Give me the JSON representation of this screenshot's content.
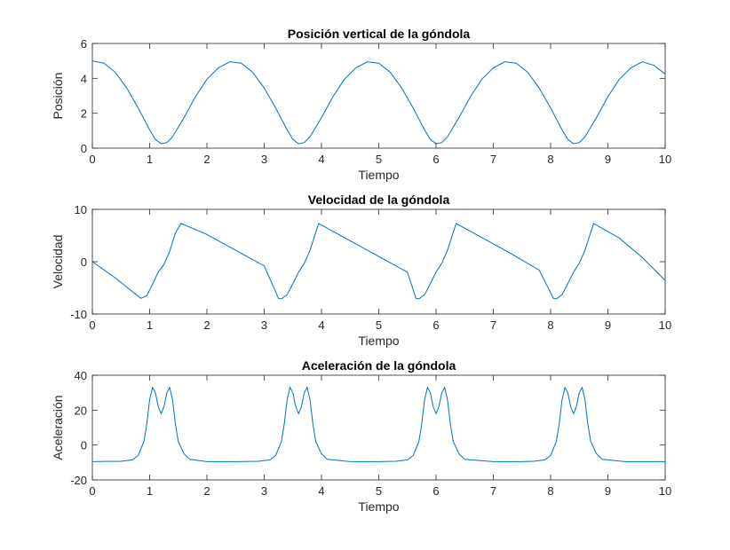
{
  "chart_data": [
    {
      "type": "line",
      "title": "Posición vertical de la góndola",
      "xlabel": "Tiempo",
      "ylabel": "Posición",
      "xlim": [
        0,
        10
      ],
      "ylim": [
        0,
        6
      ],
      "xticks": [
        0,
        1,
        2,
        3,
        4,
        5,
        6,
        7,
        8,
        9,
        10
      ],
      "yticks": [
        0,
        2,
        4,
        6
      ],
      "grid": false,
      "series": [
        {
          "color": "#0072BD",
          "x": [
            0,
            0.2,
            0.4,
            0.6,
            0.8,
            1.0,
            1.1,
            1.2,
            1.3,
            1.4,
            1.6,
            1.8,
            2.0,
            2.2,
            2.4,
            2.6,
            2.8,
            3.0,
            3.2,
            3.4,
            3.5,
            3.6,
            3.7,
            3.8,
            4.0,
            4.2,
            4.4,
            4.6,
            4.8,
            5.0,
            5.2,
            5.4,
            5.6,
            5.8,
            5.9,
            6.0,
            6.1,
            6.2,
            6.4,
            6.6,
            6.8,
            7.0,
            7.2,
            7.4,
            7.6,
            7.8,
            8.0,
            8.2,
            8.3,
            8.4,
            8.5,
            8.6,
            8.8,
            9.0,
            9.2,
            9.4,
            9.6,
            9.8,
            10.0
          ],
          "y": [
            5.0,
            4.87,
            4.35,
            3.45,
            2.3,
            1.05,
            0.5,
            0.25,
            0.32,
            0.65,
            1.75,
            2.95,
            3.95,
            4.6,
            4.95,
            4.87,
            4.35,
            3.45,
            2.3,
            1.05,
            0.5,
            0.25,
            0.32,
            0.65,
            1.75,
            2.95,
            3.95,
            4.6,
            4.95,
            4.87,
            4.35,
            3.45,
            2.3,
            1.05,
            0.5,
            0.25,
            0.32,
            0.65,
            1.75,
            2.95,
            3.95,
            4.6,
            4.95,
            4.87,
            4.35,
            3.45,
            2.3,
            1.05,
            0.5,
            0.25,
            0.32,
            0.65,
            1.75,
            2.95,
            3.95,
            4.6,
            4.95,
            4.75,
            4.25
          ]
        }
      ]
    },
    {
      "type": "line",
      "title": "Velocidad de la góndola",
      "xlabel": "Tiempo",
      "ylabel": "Velocidad",
      "xlim": [
        0,
        10
      ],
      "ylim": [
        -10,
        10
      ],
      "xticks": [
        0,
        1,
        2,
        3,
        4,
        5,
        6,
        7,
        8,
        9,
        10
      ],
      "yticks": [
        -10,
        0,
        10
      ],
      "grid": false,
      "series": [
        {
          "color": "#0072BD",
          "x": [
            0,
            0.4,
            0.8,
            0.85,
            0.95,
            1.05,
            1.15,
            1.25,
            1.35,
            1.45,
            1.55,
            2.0,
            2.5,
            3.0,
            3.25,
            3.3,
            3.4,
            3.5,
            3.6,
            3.7,
            3.8,
            3.9,
            3.95,
            4.5,
            5.0,
            5.5,
            5.65,
            5.7,
            5.8,
            5.9,
            6.0,
            6.1,
            6.2,
            6.3,
            6.35,
            6.8,
            7.3,
            7.8,
            8.05,
            8.1,
            8.2,
            8.3,
            8.4,
            8.5,
            8.6,
            8.7,
            8.75,
            9.2,
            9.6,
            10.0
          ],
          "y": [
            0,
            -3.1,
            -6.6,
            -7.0,
            -6.5,
            -4.3,
            -2.0,
            -0.5,
            2.0,
            5.5,
            7.3,
            5.2,
            2.2,
            -0.8,
            -7.0,
            -7.1,
            -6.3,
            -4.2,
            -2.0,
            -0.3,
            2.2,
            5.6,
            7.3,
            4.0,
            1.0,
            -2.0,
            -7.0,
            -7.1,
            -6.3,
            -4.2,
            -2.0,
            -0.3,
            2.2,
            5.6,
            7.3,
            4.6,
            1.6,
            -1.6,
            -7.0,
            -7.1,
            -6.3,
            -4.2,
            -2.0,
            -0.3,
            2.2,
            5.6,
            7.3,
            4.5,
            0.8,
            -3.6
          ]
        }
      ]
    },
    {
      "type": "line",
      "title": "Aceleración de la góndola",
      "xlabel": "Tiempo",
      "ylabel": "Aceleración",
      "xlim": [
        0,
        10
      ],
      "ylim": [
        -20,
        40
      ],
      "xticks": [
        0,
        1,
        2,
        3,
        4,
        5,
        6,
        7,
        8,
        9,
        10
      ],
      "yticks": [
        -20,
        0,
        20,
        40
      ],
      "grid": false,
      "series": [
        {
          "color": "#0072BD",
          "x": [
            0,
            0.5,
            0.7,
            0.8,
            0.9,
            0.95,
            1.0,
            1.05,
            1.1,
            1.15,
            1.2,
            1.25,
            1.3,
            1.35,
            1.4,
            1.45,
            1.5,
            1.6,
            1.7,
            2.0,
            2.5,
            2.9,
            3.1,
            3.2,
            3.3,
            3.35,
            3.4,
            3.45,
            3.5,
            3.55,
            3.6,
            3.65,
            3.7,
            3.75,
            3.8,
            3.85,
            3.9,
            4.0,
            4.1,
            4.5,
            5.0,
            5.3,
            5.5,
            5.6,
            5.7,
            5.75,
            5.8,
            5.85,
            5.9,
            5.95,
            6.0,
            6.05,
            6.1,
            6.15,
            6.2,
            6.25,
            6.3,
            6.4,
            6.5,
            7.0,
            7.5,
            7.7,
            7.9,
            8.0,
            8.1,
            8.15,
            8.2,
            8.25,
            8.3,
            8.35,
            8.4,
            8.45,
            8.5,
            8.55,
            8.6,
            8.65,
            8.7,
            8.8,
            8.9,
            9.3,
            10.0
          ],
          "y": [
            -9.5,
            -9.3,
            -8.5,
            -6.0,
            2.0,
            12.0,
            26.0,
            33.0,
            30.0,
            22.0,
            18.0,
            22.0,
            30.0,
            33.0,
            26.0,
            12.0,
            2.0,
            -5.0,
            -8.2,
            -9.5,
            -9.5,
            -9.3,
            -8.5,
            -6.0,
            2.0,
            12.0,
            26.0,
            33.0,
            30.0,
            22.0,
            18.0,
            22.0,
            30.0,
            33.0,
            26.0,
            12.0,
            2.0,
            -5.0,
            -8.2,
            -9.5,
            -9.5,
            -9.3,
            -8.5,
            -6.0,
            2.0,
            12.0,
            26.0,
            33.0,
            30.0,
            22.0,
            18.0,
            22.0,
            30.0,
            33.0,
            26.0,
            12.0,
            2.0,
            -5.0,
            -8.2,
            -9.5,
            -9.5,
            -9.3,
            -8.5,
            -6.0,
            2.0,
            12.0,
            26.0,
            33.0,
            30.0,
            22.0,
            18.0,
            22.0,
            30.0,
            33.0,
            26.0,
            12.0,
            2.0,
            -5.0,
            -8.2,
            -9.5,
            -9.5
          ]
        }
      ]
    }
  ]
}
